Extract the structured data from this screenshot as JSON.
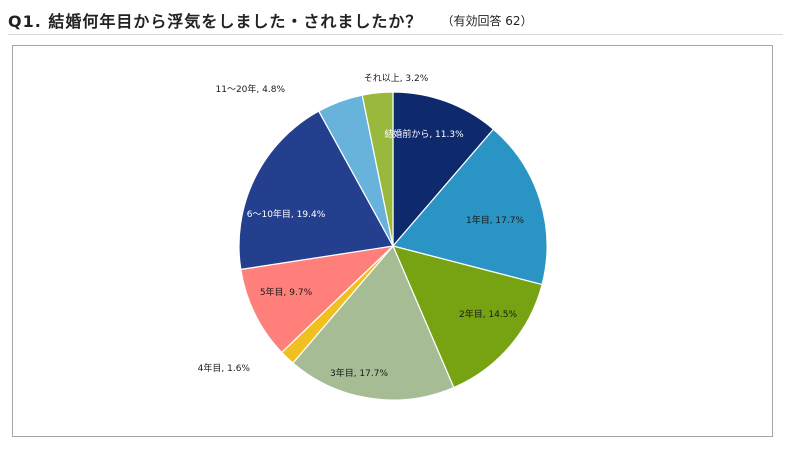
{
  "header": {
    "question": "Q1. 結婚何年目から浮気をしました・されましたか？",
    "note": "（有効回答 62）"
  },
  "chart_data": {
    "type": "pie",
    "title": "",
    "start_angle": "12 o'clock, clockwise",
    "slices": [
      {
        "label": "結婚前から",
        "percent": 11.3,
        "color": "#0e2a6d",
        "label_color": "#ffffff",
        "text": "結婚前から, 11.3%"
      },
      {
        "label": "1年目",
        "percent": 17.7,
        "color": "#2a95c5",
        "label_color": "#1a1a1a",
        "text": "1年目, 17.7%"
      },
      {
        "label": "2年目",
        "percent": 14.5,
        "color": "#77a312",
        "label_color": "#1a1a1a",
        "text": "2年目, 14.5%"
      },
      {
        "label": "3年目",
        "percent": 17.7,
        "color": "#a6bc95",
        "label_color": "#1a1a1a",
        "text": "3年目, 17.7%"
      },
      {
        "label": "4年目",
        "percent": 1.6,
        "color": "#f0c020",
        "label_color": "#1a1a1a",
        "text": "4年目, 1.6%"
      },
      {
        "label": "5年目",
        "percent": 9.7,
        "color": "#ff807a",
        "label_color": "#1a1a1a",
        "text": "5年目, 9.7%"
      },
      {
        "label": "6〜10年目",
        "percent": 19.4,
        "color": "#233f8e",
        "label_color": "#ffffff",
        "text": "6〜10年目, 19.4%"
      },
      {
        "label": "11〜20年",
        "percent": 4.8,
        "color": "#68b3dc",
        "label_color": "#1a1a1a",
        "text": "11〜20年, 4.8%"
      },
      {
        "label": "それ以上",
        "percent": 3.2,
        "color": "#98b93c",
        "label_color": "#1a1a1a",
        "text": "それ以上, 3.2%"
      }
    ]
  }
}
